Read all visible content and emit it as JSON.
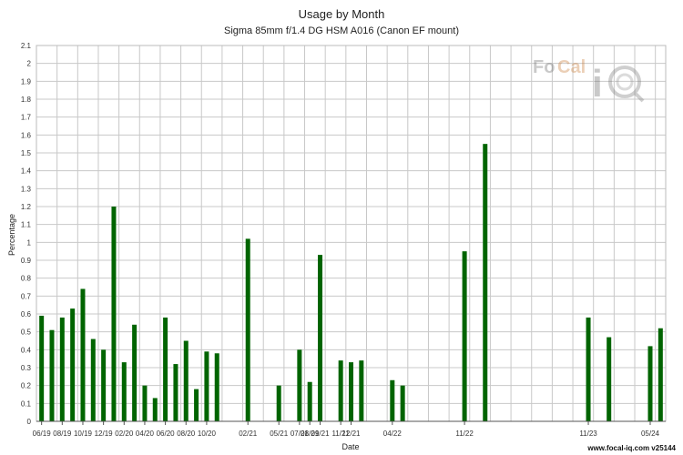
{
  "header": {
    "title": "Usage by Month",
    "subtitle": "Sigma 85mm f/1.4 DG HSM A016 (Canon EF mount)"
  },
  "footer": {
    "text": "www.focal-iq.com  v25144"
  },
  "watermark": {
    "text_left": "Fo",
    "text_mid": "Cal",
    "text_right": "i",
    "icon": "magnifier-q-icon"
  },
  "colors": {
    "bar": "#006400",
    "grid": "#c8c8c8",
    "axis": "#555555"
  },
  "chart_data": {
    "type": "bar",
    "title": "Usage by Month",
    "subtitle": "Sigma 85mm f/1.4 DG HSM A016 (Canon EF mount)",
    "xlabel": "Date",
    "ylabel": "Percentage",
    "ylim": [
      0,
      2.1
    ],
    "y_ticks": [
      "0",
      "0.1",
      "0.2",
      "0.3",
      "0.4",
      "0.5",
      "0.6",
      "0.7",
      "0.8",
      "0.9",
      "1",
      "1.1",
      "1.2",
      "1.3",
      "1.4",
      "1.5",
      "1.6",
      "1.7",
      "1.8",
      "1.9",
      "2",
      "2.1"
    ],
    "x_tick_labels": [
      "06/19",
      "08/19",
      "10/19",
      "12/19",
      "02/20",
      "04/20",
      "06/20",
      "08/20",
      "10/20",
      "02/21",
      "05/21",
      "07/21",
      "08/21",
      "09/21",
      "11/21",
      "12/21",
      "04/22",
      "11/22",
      "11/23",
      "05/24"
    ],
    "x_tick_months": [
      "2019-06",
      "2019-08",
      "2019-10",
      "2019-12",
      "2020-02",
      "2020-04",
      "2020-06",
      "2020-08",
      "2020-10",
      "2021-02",
      "2021-05",
      "2021-07",
      "2021-08",
      "2021-09",
      "2021-11",
      "2021-12",
      "2022-04",
      "2022-11",
      "2023-11",
      "2024-05"
    ],
    "grid": true,
    "legend": "none",
    "categories": [
      "2019-06",
      "2019-07",
      "2019-08",
      "2019-09",
      "2019-10",
      "2019-11",
      "2019-12",
      "2020-01",
      "2020-02",
      "2020-03",
      "2020-04",
      "2020-05",
      "2020-06",
      "2020-07",
      "2020-08",
      "2020-09",
      "2020-10",
      "2020-11",
      "2021-02",
      "2021-05",
      "2021-07",
      "2021-08",
      "2021-09",
      "2021-11",
      "2021-12",
      "2022-01",
      "2022-04",
      "2022-05",
      "2022-11",
      "2023-01",
      "2023-11",
      "2024-01",
      "2024-05",
      "2024-06"
    ],
    "values": [
      0.59,
      0.51,
      0.58,
      0.63,
      0.74,
      0.46,
      0.4,
      1.2,
      0.33,
      0.54,
      0.2,
      0.13,
      0.58,
      0.32,
      0.45,
      0.18,
      0.39,
      0.38,
      1.02,
      0.2,
      0.4,
      0.22,
      0.93,
      0.34,
      0.33,
      0.34,
      0.23,
      0.2,
      0.95,
      1.55,
      0.58,
      0.47,
      0.42,
      0.52
    ]
  }
}
